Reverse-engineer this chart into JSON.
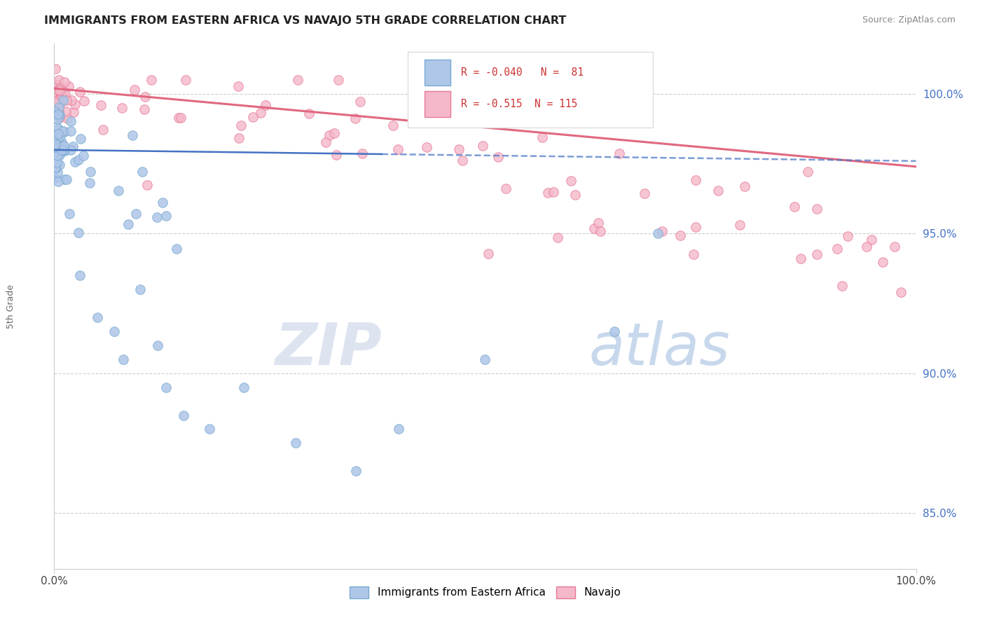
{
  "title": "IMMIGRANTS FROM EASTERN AFRICA VS NAVAJO 5TH GRADE CORRELATION CHART",
  "source": "Source: ZipAtlas.com",
  "ylabel": "5th Grade",
  "r_blue": -0.04,
  "n_blue": 81,
  "r_pink": -0.515,
  "n_pink": 115,
  "blue_color": "#aec6e8",
  "pink_color": "#f4b8c8",
  "blue_edge_color": "#7aaad0",
  "pink_edge_color": "#e87898",
  "blue_line_color": "#4472c4",
  "pink_line_color": "#e06880",
  "y_ticks": [
    85.0,
    90.0,
    95.0,
    100.0
  ],
  "ylim_min": 83.0,
  "ylim_max": 101.8,
  "watermark_zip_color": "#dde4f0",
  "watermark_atlas_color": "#c8d8ec"
}
